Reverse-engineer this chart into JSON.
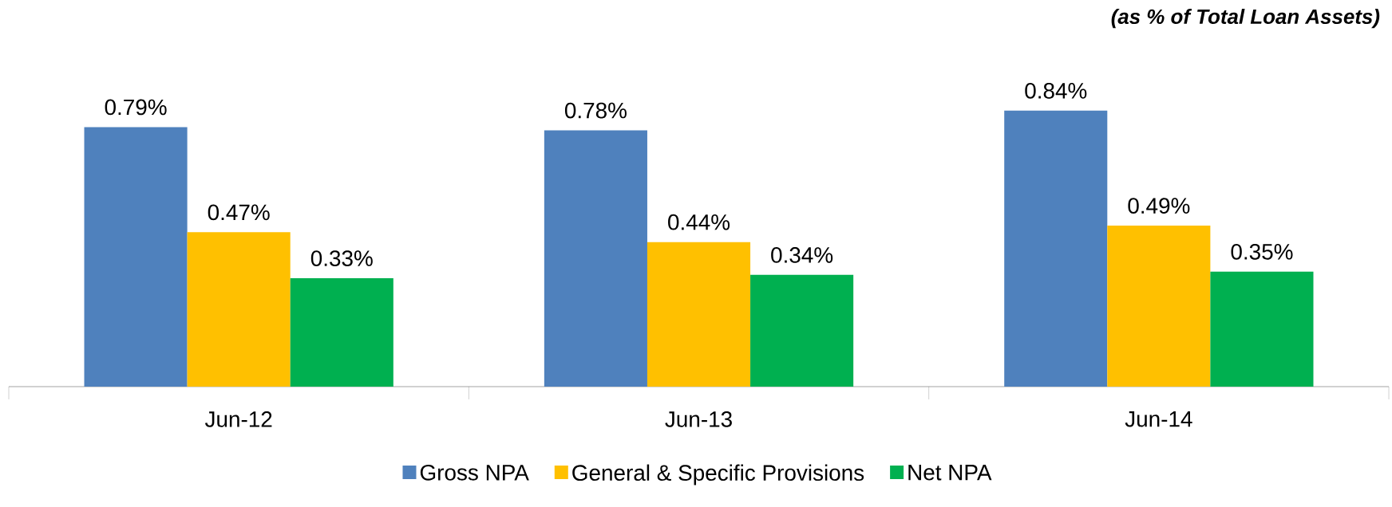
{
  "chart_data": {
    "type": "bar",
    "categories": [
      "Jun-12",
      "Jun-13",
      "Jun-14"
    ],
    "series": [
      {
        "name": "Gross NPA",
        "color": "#4f81bd",
        "values": [
          0.79,
          0.78,
          0.84
        ],
        "value_labels": [
          "0.79%",
          "0.78%",
          "0.84%"
        ]
      },
      {
        "name": "General & Specific Provisions",
        "color": "#ffc000",
        "values": [
          0.47,
          0.44,
          0.49
        ],
        "value_labels": [
          "0.47%",
          "0.44%",
          "0.49%"
        ]
      },
      {
        "name": "Net NPA",
        "color": "#00b050",
        "values": [
          0.33,
          0.34,
          0.35
        ],
        "value_labels": [
          "0.33%",
          "0.34%",
          "0.35%"
        ]
      }
    ],
    "annotations": [
      "(as % of Total Loan Assets)"
    ],
    "legend": "bottom"
  }
}
